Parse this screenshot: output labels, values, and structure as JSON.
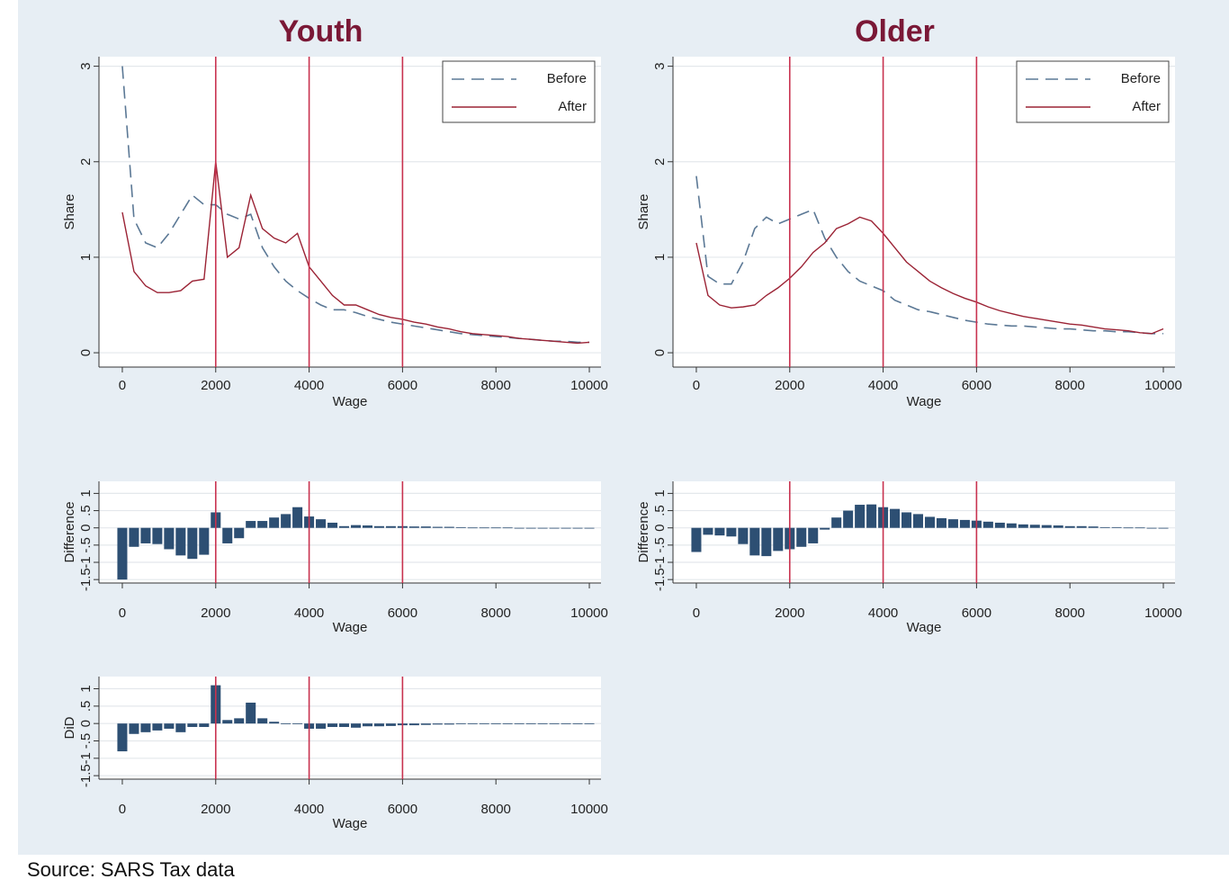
{
  "source": "Source: SARS Tax data",
  "chart_data": [
    {
      "type": "line",
      "title": "Youth",
      "xlabel": "Wage",
      "ylabel": "Share",
      "xlim": [
        -500,
        10250
      ],
      "ylim": [
        -0.15,
        3.1
      ],
      "xticks": [
        0,
        2000,
        4000,
        6000,
        8000,
        10000
      ],
      "yticks": [
        0,
        1,
        2,
        3
      ],
      "grid": true,
      "vlines": [
        2000,
        4000,
        6000
      ],
      "vline_color": "#c8324f",
      "legend": "top-right",
      "x": [
        0,
        250,
        500,
        750,
        1000,
        1250,
        1500,
        1750,
        2000,
        2250,
        2500,
        2750,
        3000,
        3250,
        3500,
        3750,
        4000,
        4250,
        4500,
        4750,
        5000,
        5250,
        5500,
        5750,
        6000,
        6250,
        6500,
        6750,
        7000,
        7250,
        7500,
        7750,
        8000,
        8250,
        8500,
        8750,
        9000,
        9250,
        9500,
        9750,
        10000
      ],
      "series": [
        {
          "name": "Before",
          "color": "#5b7895",
          "dashed": true,
          "values": [
            3.0,
            1.4,
            1.15,
            1.1,
            1.25,
            1.45,
            1.65,
            1.55,
            1.55,
            1.45,
            1.4,
            1.45,
            1.1,
            0.9,
            0.75,
            0.65,
            0.57,
            0.5,
            0.45,
            0.45,
            0.42,
            0.38,
            0.35,
            0.32,
            0.3,
            0.28,
            0.26,
            0.24,
            0.22,
            0.2,
            0.19,
            0.18,
            0.17,
            0.16,
            0.15,
            0.14,
            0.13,
            0.12,
            0.12,
            0.11,
            0.11
          ]
        },
        {
          "name": "After",
          "color": "#9b2335",
          "dashed": false,
          "values": [
            1.47,
            0.85,
            0.7,
            0.63,
            0.63,
            0.65,
            0.75,
            0.77,
            2.0,
            1.0,
            1.1,
            1.65,
            1.3,
            1.2,
            1.15,
            1.25,
            0.9,
            0.75,
            0.6,
            0.5,
            0.5,
            0.45,
            0.4,
            0.37,
            0.35,
            0.32,
            0.3,
            0.27,
            0.25,
            0.22,
            0.2,
            0.19,
            0.18,
            0.17,
            0.15,
            0.14,
            0.13,
            0.12,
            0.11,
            0.1,
            0.11
          ]
        }
      ]
    },
    {
      "type": "line",
      "title": "Older",
      "xlabel": "Wage",
      "ylabel": "Share",
      "xlim": [
        -500,
        10250
      ],
      "ylim": [
        -0.15,
        3.1
      ],
      "xticks": [
        0,
        2000,
        4000,
        6000,
        8000,
        10000
      ],
      "yticks": [
        0,
        1,
        2,
        3
      ],
      "grid": true,
      "vlines": [
        2000,
        4000,
        6000
      ],
      "vline_color": "#c8324f",
      "legend": "top-right",
      "x": [
        0,
        250,
        500,
        750,
        1000,
        1250,
        1500,
        1750,
        2000,
        2250,
        2500,
        2750,
        3000,
        3250,
        3500,
        3750,
        4000,
        4250,
        4500,
        4750,
        5000,
        5250,
        5500,
        5750,
        6000,
        6250,
        6500,
        6750,
        7000,
        7250,
        7500,
        7750,
        8000,
        8250,
        8500,
        8750,
        9000,
        9250,
        9500,
        9750,
        10000
      ],
      "series": [
        {
          "name": "Before",
          "color": "#5b7895",
          "dashed": true,
          "values": [
            1.85,
            0.8,
            0.72,
            0.72,
            0.95,
            1.3,
            1.42,
            1.35,
            1.4,
            1.45,
            1.5,
            1.2,
            1.0,
            0.85,
            0.75,
            0.7,
            0.65,
            0.55,
            0.5,
            0.45,
            0.43,
            0.4,
            0.37,
            0.34,
            0.32,
            0.3,
            0.29,
            0.28,
            0.28,
            0.27,
            0.26,
            0.25,
            0.25,
            0.24,
            0.23,
            0.23,
            0.22,
            0.22,
            0.21,
            0.2,
            0.2
          ]
        },
        {
          "name": "After",
          "color": "#9b2335",
          "dashed": false,
          "values": [
            1.15,
            0.6,
            0.5,
            0.47,
            0.48,
            0.5,
            0.6,
            0.68,
            0.78,
            0.9,
            1.05,
            1.15,
            1.3,
            1.35,
            1.42,
            1.38,
            1.25,
            1.1,
            0.95,
            0.85,
            0.75,
            0.68,
            0.62,
            0.57,
            0.53,
            0.48,
            0.44,
            0.41,
            0.38,
            0.36,
            0.34,
            0.32,
            0.3,
            0.29,
            0.27,
            0.25,
            0.24,
            0.23,
            0.21,
            0.2,
            0.25
          ]
        }
      ]
    },
    {
      "type": "bar",
      "xlabel": "Wage",
      "ylabel": "Difference",
      "xlim": [
        -500,
        10250
      ],
      "ylim": [
        -1.6,
        1.35
      ],
      "xticks": [
        0,
        2000,
        4000,
        6000,
        8000,
        10000
      ],
      "yticks": [
        -1.5,
        -1,
        {
          "value": -0.5,
          "label": "-.5"
        },
        0,
        {
          "value": 0.5,
          "label": ".5"
        },
        1
      ],
      "grid": true,
      "vlines": [
        2000,
        4000,
        6000
      ],
      "vline_color": "#c8324f",
      "color": "#2d4f73",
      "x": [
        0,
        250,
        500,
        750,
        1000,
        1250,
        1500,
        1750,
        2000,
        2250,
        2500,
        2750,
        3000,
        3250,
        3500,
        3750,
        4000,
        4250,
        4500,
        4750,
        5000,
        5250,
        5500,
        5750,
        6000,
        6250,
        6500,
        6750,
        7000,
        7250,
        7500,
        7750,
        8000,
        8250,
        8500,
        8750,
        9000,
        9250,
        9500,
        9750,
        10000
      ],
      "values": [
        -1.5,
        -0.55,
        -0.45,
        -0.47,
        -0.62,
        -0.8,
        -0.9,
        -0.78,
        0.45,
        -0.45,
        -0.3,
        0.2,
        0.2,
        0.3,
        0.4,
        0.6,
        0.33,
        0.25,
        0.15,
        0.05,
        0.08,
        0.07,
        0.05,
        0.05,
        0.05,
        0.04,
        0.04,
        0.03,
        0.03,
        0.02,
        0.01,
        0.01,
        0.01,
        0.01,
        0,
        0,
        0,
        0,
        0,
        0,
        0
      ]
    },
    {
      "type": "bar",
      "xlabel": "Wage",
      "ylabel": "Difference",
      "xlim": [
        -500,
        10250
      ],
      "ylim": [
        -1.6,
        1.35
      ],
      "xticks": [
        0,
        2000,
        4000,
        6000,
        8000,
        10000
      ],
      "yticks": [
        -1.5,
        -1,
        {
          "value": -0.5,
          "label": "-.5"
        },
        0,
        {
          "value": 0.5,
          "label": ".5"
        },
        1
      ],
      "grid": true,
      "vlines": [
        2000,
        4000,
        6000
      ],
      "vline_color": "#c8324f",
      "color": "#2d4f73",
      "x": [
        0,
        250,
        500,
        750,
        1000,
        1250,
        1500,
        1750,
        2000,
        2250,
        2500,
        2750,
        3000,
        3250,
        3500,
        3750,
        4000,
        4250,
        4500,
        4750,
        5000,
        5250,
        5500,
        5750,
        6000,
        6250,
        6500,
        6750,
        7000,
        7250,
        7500,
        7750,
        8000,
        8250,
        8500,
        8750,
        9000,
        9250,
        9500,
        9750,
        10000
      ],
      "values": [
        -0.7,
        -0.2,
        -0.22,
        -0.25,
        -0.47,
        -0.8,
        -0.82,
        -0.67,
        -0.62,
        -0.55,
        -0.45,
        -0.05,
        0.3,
        0.5,
        0.67,
        0.68,
        0.6,
        0.55,
        0.45,
        0.4,
        0.32,
        0.28,
        0.25,
        0.23,
        0.21,
        0.18,
        0.15,
        0.13,
        0.1,
        0.09,
        0.08,
        0.07,
        0.05,
        0.05,
        0.04,
        0.02,
        0.02,
        0.01,
        0.01,
        0,
        0
      ]
    },
    {
      "type": "bar",
      "xlabel": "Wage",
      "ylabel": "DiD",
      "xlim": [
        -500,
        10250
      ],
      "ylim": [
        -1.6,
        1.35
      ],
      "xticks": [
        0,
        2000,
        4000,
        6000,
        8000,
        10000
      ],
      "yticks": [
        -1.5,
        -1,
        {
          "value": -0.5,
          "label": "-.5"
        },
        0,
        {
          "value": 0.5,
          "label": ".5"
        },
        1
      ],
      "grid": true,
      "vlines": [
        2000,
        4000,
        6000
      ],
      "vline_color": "#c8324f",
      "color": "#2d4f73",
      "x": [
        0,
        250,
        500,
        750,
        1000,
        1250,
        1500,
        1750,
        2000,
        2250,
        2500,
        2750,
        3000,
        3250,
        3500,
        3750,
        4000,
        4250,
        4500,
        4750,
        5000,
        5250,
        5500,
        5750,
        6000,
        6250,
        6500,
        6750,
        7000,
        7250,
        7500,
        7750,
        8000,
        8250,
        8500,
        8750,
        9000,
        9250,
        9500,
        9750,
        10000
      ],
      "values": [
        -0.8,
        -0.3,
        -0.25,
        -0.2,
        -0.15,
        -0.25,
        -0.1,
        -0.1,
        1.1,
        0.1,
        0.15,
        0.6,
        0.15,
        0.05,
        0,
        0,
        -0.15,
        -0.15,
        -0.1,
        -0.1,
        -0.12,
        -0.08,
        -0.08,
        -0.07,
        -0.05,
        -0.05,
        -0.04,
        -0.03,
        -0.03,
        -0.02,
        -0.02,
        -0.01,
        -0.01,
        0,
        0,
        0,
        0,
        0,
        0,
        0,
        0
      ]
    }
  ]
}
